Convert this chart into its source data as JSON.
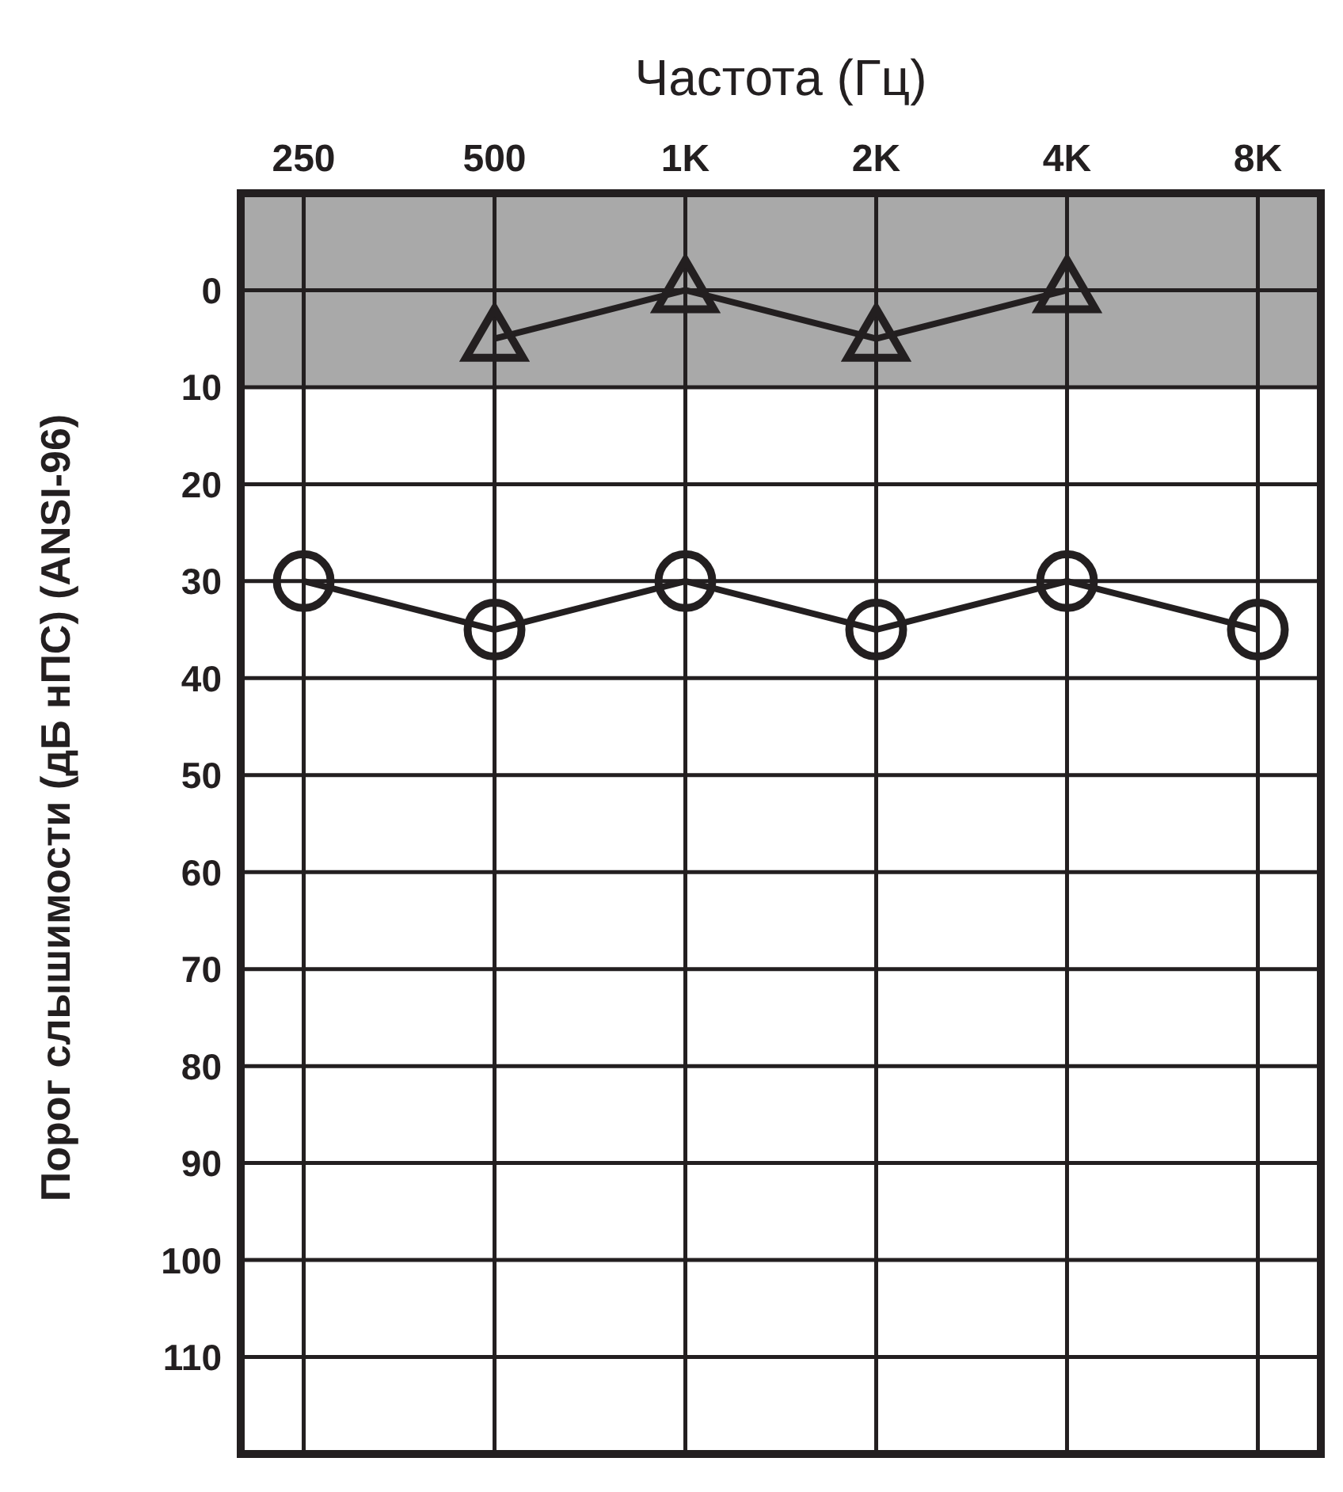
{
  "chart_data": {
    "type": "line",
    "xlabel": "Частота (Гц)",
    "ylabel": "Порог слышимости (дБ нПС)  (ANSI-96)",
    "categories": [
      "250",
      "500",
      "1K",
      "2K",
      "4K",
      "8K"
    ],
    "series": [
      {
        "color": "#231f20",
        "marker": "triangle",
        "values": [
          null,
          5,
          0,
          5,
          0,
          null
        ]
      },
      {
        "color": "#231f20",
        "marker": "circle",
        "values": [
          30,
          35,
          30,
          35,
          30,
          35
        ]
      }
    ],
    "ylim": [
      120,
      -10
    ],
    "yticks": [
      0,
      10,
      20,
      30,
      40,
      50,
      60,
      70,
      80,
      90,
      100,
      110
    ],
    "bands": [
      {
        "axis": "y",
        "from": -10,
        "to": 10,
        "color": "#a9a9a9"
      }
    ],
    "grid": true
  }
}
